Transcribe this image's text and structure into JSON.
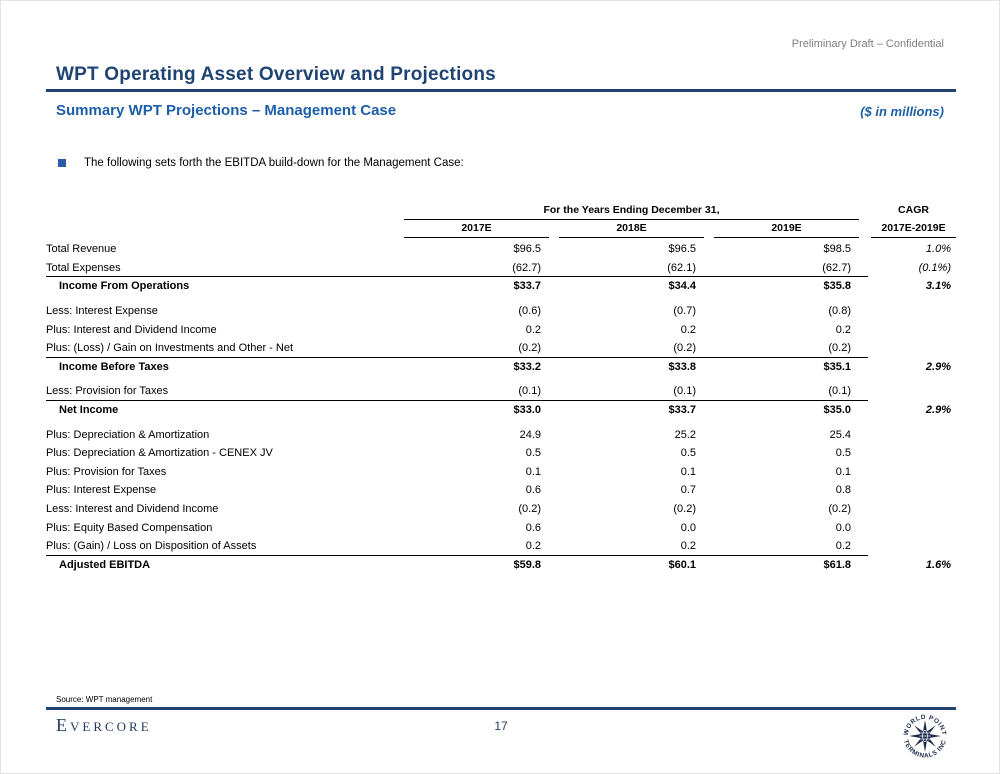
{
  "colors": {
    "title_navy": "#1f4472",
    "subtitle_blue": "#1c5fa8",
    "bullet_blue": "#2c5ba8",
    "classification_gray": "#7f7f7f",
    "stamp_navy": "#1c2b4a"
  },
  "header": {
    "classification": "Preliminary Draft – Confidential",
    "title": "WPT Operating Asset Overview and Projections",
    "subtitle": "Summary WPT Projections – Management Case",
    "units_label": "($ in millions)"
  },
  "bullet_text": "The following sets forth the EBITDA build-down for the Management Case:",
  "table": {
    "span_header": "For the Years Ending December 31,",
    "cagr_line1": "CAGR",
    "cagr_line2": "2017E-2019E",
    "years": [
      "2017E",
      "2018E",
      "2019E"
    ],
    "rows": [
      {
        "label": "Total Revenue",
        "values": [
          "$96.5",
          "$96.5",
          "$98.5"
        ],
        "cagr": "1.0%",
        "bold": false,
        "topline": false,
        "space_before": false
      },
      {
        "label": "Total Expenses",
        "values": [
          "(62.7)",
          "(62.1)",
          "(62.7)"
        ],
        "cagr": "(0.1%)",
        "bold": false,
        "topline": false,
        "space_before": false
      },
      {
        "label": "Income From Operations",
        "values": [
          "$33.7",
          "$34.4",
          "$35.8"
        ],
        "cagr": "3.1%",
        "bold": true,
        "topline": true,
        "space_before": false
      },
      {
        "label": "Less: Interest Expense",
        "values": [
          "(0.6)",
          "(0.7)",
          "(0.8)"
        ],
        "cagr": "",
        "bold": false,
        "topline": false,
        "space_before": true
      },
      {
        "label": "Plus: Interest and Dividend Income",
        "values": [
          "0.2",
          "0.2",
          "0.2"
        ],
        "cagr": "",
        "bold": false,
        "topline": false,
        "space_before": false
      },
      {
        "label": "Plus: (Loss) / Gain on Investments and Other - Net",
        "values": [
          "(0.2)",
          "(0.2)",
          "(0.2)"
        ],
        "cagr": "",
        "bold": false,
        "topline": false,
        "space_before": false
      },
      {
        "label": "Income Before Taxes",
        "values": [
          "$33.2",
          "$33.8",
          "$35.1"
        ],
        "cagr": "2.9%",
        "bold": true,
        "topline": true,
        "space_before": false
      },
      {
        "label": "Less: Provision for Taxes",
        "values": [
          "(0.1)",
          "(0.1)",
          "(0.1)"
        ],
        "cagr": "",
        "bold": false,
        "topline": false,
        "space_before": true
      },
      {
        "label": "Net Income",
        "values": [
          "$33.0",
          "$33.7",
          "$35.0"
        ],
        "cagr": "2.9%",
        "bold": true,
        "topline": true,
        "space_before": false
      },
      {
        "label": "Plus: Depreciation & Amortization",
        "values": [
          "24.9",
          "25.2",
          "25.4"
        ],
        "cagr": "",
        "bold": false,
        "topline": false,
        "space_before": true
      },
      {
        "label": "Plus: Depreciation & Amortization - CENEX JV",
        "values": [
          "0.5",
          "0.5",
          "0.5"
        ],
        "cagr": "",
        "bold": false,
        "topline": false,
        "space_before": false
      },
      {
        "label": "Plus: Provision for Taxes",
        "values": [
          "0.1",
          "0.1",
          "0.1"
        ],
        "cagr": "",
        "bold": false,
        "topline": false,
        "space_before": false
      },
      {
        "label": "Plus: Interest Expense",
        "values": [
          "0.6",
          "0.7",
          "0.8"
        ],
        "cagr": "",
        "bold": false,
        "topline": false,
        "space_before": false
      },
      {
        "label": "Less: Interest and Dividend Income",
        "values": [
          "(0.2)",
          "(0.2)",
          "(0.2)"
        ],
        "cagr": "",
        "bold": false,
        "topline": false,
        "space_before": false
      },
      {
        "label": "Plus: Equity Based Compensation",
        "values": [
          "0.6",
          "0.0",
          "0.0"
        ],
        "cagr": "",
        "bold": false,
        "topline": false,
        "space_before": false
      },
      {
        "label": "Plus: (Gain) / Loss on Disposition of Assets",
        "values": [
          "0.2",
          "0.2",
          "0.2"
        ],
        "cagr": "",
        "bold": false,
        "topline": false,
        "space_before": false
      },
      {
        "label": "Adjusted EBITDA",
        "values": [
          "$59.8",
          "$60.1",
          "$61.8"
        ],
        "cagr": "1.6%",
        "bold": true,
        "topline": true,
        "space_before": false
      }
    ]
  },
  "footer": {
    "source": "Source: WPT management",
    "brand": "Evercore",
    "page_number": "17",
    "stamp_top": "WORLD POINT",
    "stamp_bottom": "TERMINALS INC"
  }
}
